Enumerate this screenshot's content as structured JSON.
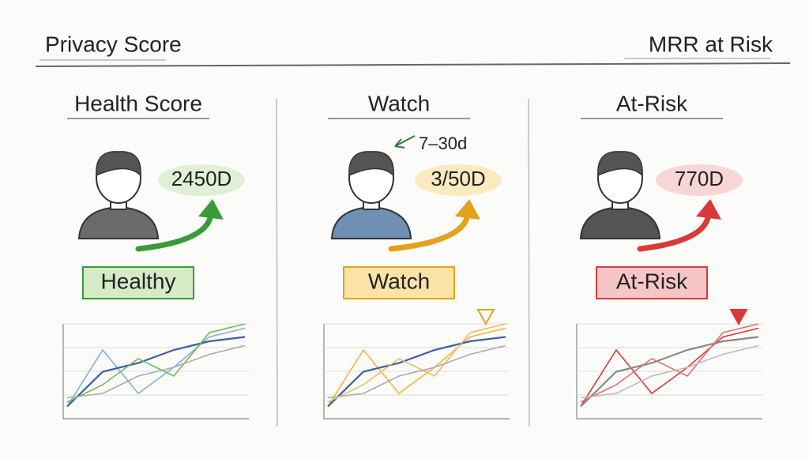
{
  "header": {
    "left": "Privacy Score",
    "right": "MRR at Risk"
  },
  "panels": [
    {
      "title": "Health Score",
      "value": "2450D",
      "badge": "Healthy"
    },
    {
      "title": "Watch",
      "note": "7–30d",
      "value": "3/50D",
      "badge": "Watch"
    },
    {
      "title": "At-Risk",
      "value": "770D",
      "badge": "At-Risk"
    }
  ]
}
